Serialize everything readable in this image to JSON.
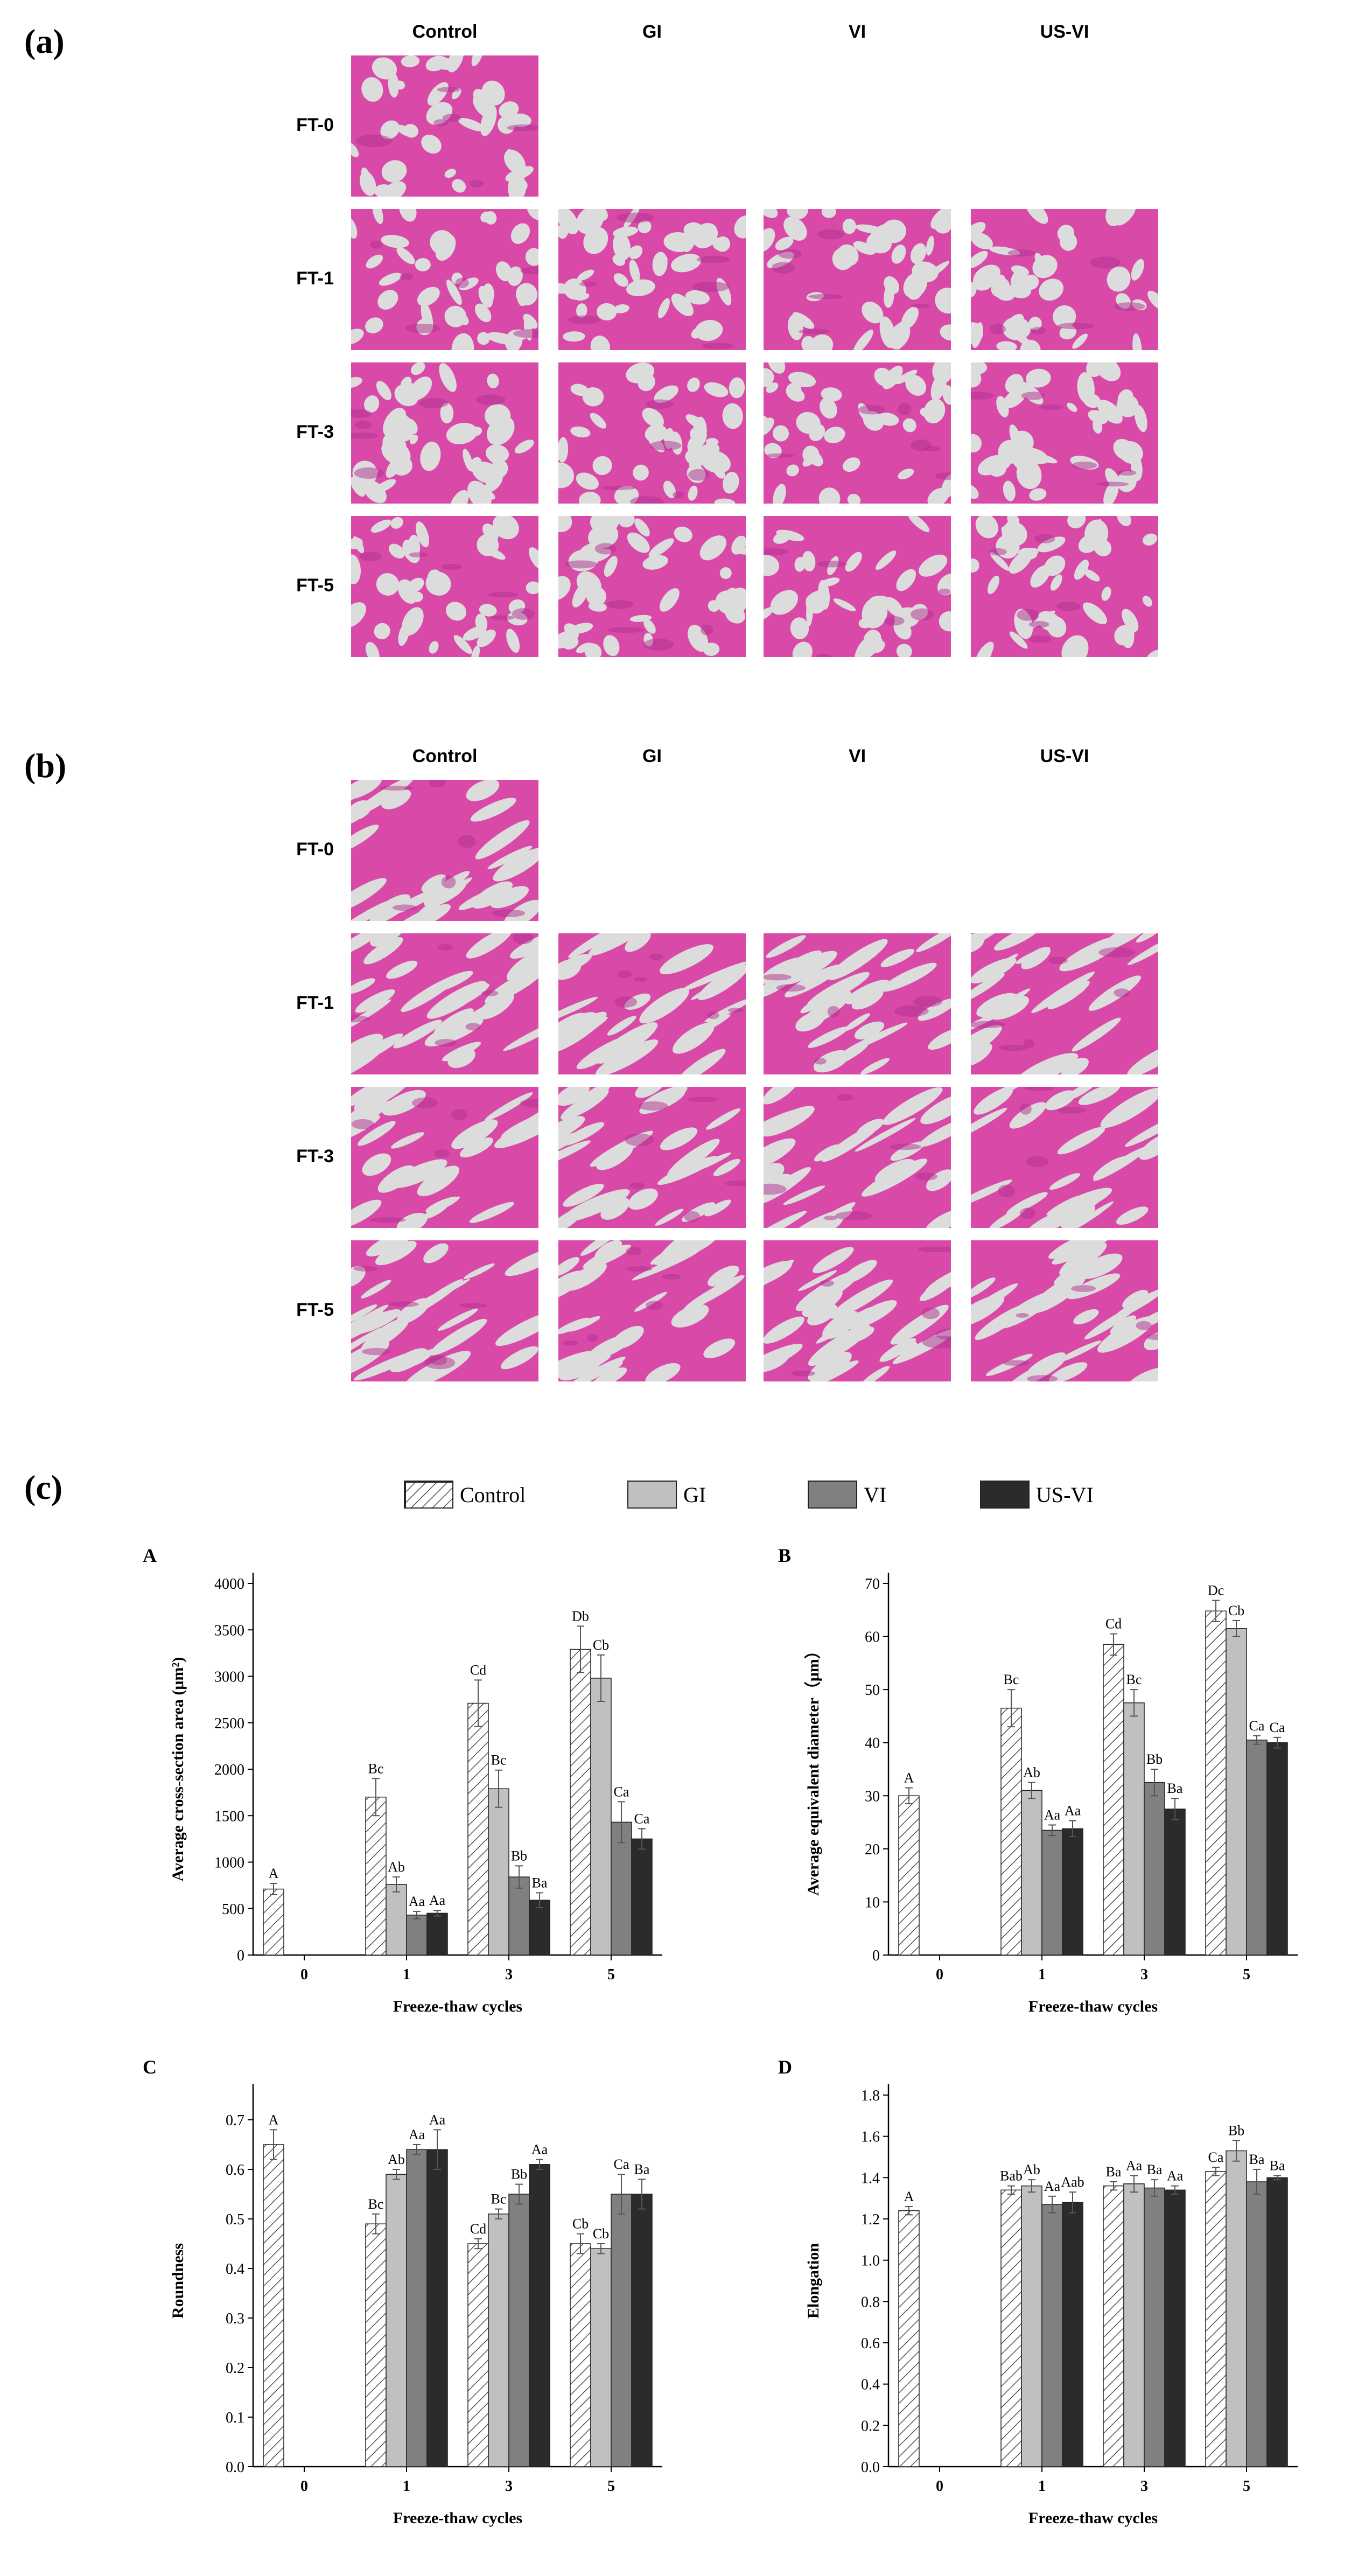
{
  "panels": {
    "a": "(a)",
    "b": "(b)",
    "c": "(c)"
  },
  "columns": [
    "Control",
    "GI",
    "VI",
    "US-VI"
  ],
  "rows": [
    "FT-0",
    "FT-1",
    "FT-3",
    "FT-5"
  ],
  "legend": {
    "items": [
      {
        "label": "Control",
        "fill": "hatch"
      },
      {
        "label": "GI",
        "fill": "#c0c0c0"
      },
      {
        "label": "VI",
        "fill": "#808080"
      },
      {
        "label": "US-VI",
        "fill": "#2b2b2b"
      }
    ]
  },
  "colors": {
    "stain_background": "#f1c6e4",
    "tissue": "#d94aa8",
    "tissue_dark": "#b0308f",
    "void": "#dcdcdc"
  },
  "chart_data": [
    {
      "type": "bar",
      "letter": "A",
      "xlabel": "Freeze-thaw cycles",
      "ylabel": "Average cross-section area (μm²)",
      "categories": [
        "0",
        "1",
        "3",
        "5"
      ],
      "ylim": [
        0,
        4000
      ],
      "yticks": [
        0,
        500,
        1000,
        1500,
        2000,
        2500,
        3000,
        3500,
        4000
      ],
      "series": [
        {
          "name": "Control",
          "values": [
            710,
            1700,
            2710,
            3290
          ],
          "errors": [
            60,
            200,
            250,
            250
          ],
          "labels": [
            "A",
            "Bc",
            "Cd",
            "Db"
          ]
        },
        {
          "name": "GI",
          "values": [
            null,
            760,
            1790,
            2980
          ],
          "errors": [
            null,
            80,
            200,
            250
          ],
          "labels": [
            "",
            "Ab",
            "Bc",
            "Cb"
          ]
        },
        {
          "name": "VI",
          "values": [
            null,
            430,
            840,
            1430
          ],
          "errors": [
            null,
            40,
            120,
            220
          ],
          "labels": [
            "",
            "Aa",
            "Bb",
            "Ca"
          ]
        },
        {
          "name": "US-VI",
          "values": [
            null,
            450,
            590,
            1250
          ],
          "errors": [
            null,
            30,
            80,
            110
          ],
          "labels": [
            "",
            "Aa",
            "Ba",
            "Ca"
          ]
        }
      ]
    },
    {
      "type": "bar",
      "letter": "B",
      "xlabel": "Freeze-thaw cycles",
      "ylabel": "Average equivalent diameter（μm）",
      "categories": [
        "0",
        "1",
        "3",
        "5"
      ],
      "ylim": [
        0,
        70
      ],
      "yticks": [
        0,
        10,
        20,
        30,
        40,
        50,
        60,
        70
      ],
      "series": [
        {
          "name": "Control",
          "values": [
            30,
            46.5,
            58.5,
            64.8
          ],
          "errors": [
            1.5,
            3.5,
            2.0,
            2.0
          ],
          "labels": [
            "A",
            "Bc",
            "Cd",
            "Dc"
          ]
        },
        {
          "name": "GI",
          "values": [
            null,
            31,
            47.5,
            61.5
          ],
          "errors": [
            null,
            1.5,
            2.5,
            1.5
          ],
          "labels": [
            "",
            "Ab",
            "Bc",
            "Cb"
          ]
        },
        {
          "name": "VI",
          "values": [
            null,
            23.5,
            32.5,
            40.5
          ],
          "errors": [
            null,
            1.0,
            2.5,
            0.8
          ],
          "labels": [
            "",
            "Aa",
            "Bb",
            "Ca"
          ]
        },
        {
          "name": "US-VI",
          "values": [
            null,
            23.8,
            27.5,
            40
          ],
          "errors": [
            null,
            1.5,
            2.0,
            1.0
          ],
          "labels": [
            "",
            "Aa",
            "Ba",
            "Ca"
          ]
        }
      ]
    },
    {
      "type": "bar",
      "letter": "C",
      "xlabel": "Freeze-thaw cycles",
      "ylabel": "Roundness",
      "categories": [
        "0",
        "1",
        "3",
        "5"
      ],
      "ylim": [
        0,
        0.75
      ],
      "yticks": [
        0.0,
        0.1,
        0.2,
        0.3,
        0.4,
        0.5,
        0.6,
        0.7
      ],
      "tick_decimals": 1,
      "series": [
        {
          "name": "Control",
          "values": [
            0.65,
            0.49,
            0.45,
            0.45
          ],
          "errors": [
            0.03,
            0.02,
            0.01,
            0.02
          ],
          "labels": [
            "A",
            "Bc",
            "Cd",
            "Cb"
          ]
        },
        {
          "name": "GI",
          "values": [
            null,
            0.59,
            0.51,
            0.44
          ],
          "errors": [
            null,
            0.01,
            0.01,
            0.01
          ],
          "labels": [
            "",
            "Ab",
            "Bc",
            "Cb"
          ]
        },
        {
          "name": "VI",
          "values": [
            null,
            0.64,
            0.55,
            0.55
          ],
          "errors": [
            null,
            0.01,
            0.02,
            0.04
          ],
          "labels": [
            "",
            "Aa",
            "Bb",
            "Ca"
          ]
        },
        {
          "name": "US-VI",
          "values": [
            null,
            0.64,
            0.61,
            0.55
          ],
          "errors": [
            null,
            0.04,
            0.01,
            0.03
          ],
          "labels": [
            "",
            "Aa",
            "Aa",
            "Ba"
          ]
        }
      ]
    },
    {
      "type": "bar",
      "letter": "D",
      "xlabel": "Freeze-thaw cycles",
      "ylabel": "Elongation",
      "categories": [
        "0",
        "1",
        "3",
        "5"
      ],
      "ylim": [
        0,
        1.8
      ],
      "yticks": [
        0.0,
        0.2,
        0.4,
        0.6,
        0.8,
        1.0,
        1.2,
        1.4,
        1.6,
        1.8
      ],
      "tick_decimals": 1,
      "series": [
        {
          "name": "Control",
          "values": [
            1.24,
            1.34,
            1.36,
            1.43
          ],
          "errors": [
            0.02,
            0.02,
            0.02,
            0.02
          ],
          "labels": [
            "A",
            "Bab",
            "Ba",
            "Ca"
          ]
        },
        {
          "name": "GI",
          "values": [
            null,
            1.36,
            1.37,
            1.53
          ],
          "errors": [
            null,
            0.03,
            0.04,
            0.05
          ],
          "labels": [
            "",
            "Ab",
            "Aa",
            "Bb"
          ]
        },
        {
          "name": "VI",
          "values": [
            null,
            1.27,
            1.35,
            1.38
          ],
          "errors": [
            null,
            0.04,
            0.04,
            0.06
          ],
          "labels": [
            "",
            "Aa",
            "Ba",
            "Ba"
          ]
        },
        {
          "name": "US-VI",
          "values": [
            null,
            1.28,
            1.34,
            1.4
          ],
          "errors": [
            null,
            0.05,
            0.02,
            0.01
          ],
          "labels": [
            "",
            "Aab",
            "Aa",
            "Ba"
          ]
        }
      ]
    }
  ]
}
